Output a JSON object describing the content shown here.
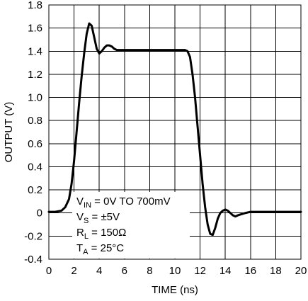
{
  "chart_data": {
    "type": "line",
    "title": "",
    "xlabel": "TIME (ns)",
    "ylabel": "OUTPUT (V)",
    "xlim": [
      0,
      20
    ],
    "ylim": [
      -0.4,
      1.8
    ],
    "xticks": [
      0,
      2,
      4,
      6,
      8,
      10,
      12,
      14,
      16,
      18,
      20
    ],
    "xtick_labels": [
      "0",
      "2",
      "4",
      "6",
      "8",
      "10",
      "12",
      "14",
      "16",
      "18",
      "20"
    ],
    "yticks": [
      -0.4,
      -0.2,
      0,
      0.2,
      0.4,
      0.6,
      0.8,
      1.0,
      1.2,
      1.4,
      1.6,
      1.8
    ],
    "ytick_labels": [
      "-0.4",
      "-0.2",
      "0",
      "0.2",
      "0.4",
      "0.6",
      "0.8",
      "1.0",
      "1.2",
      "1.4",
      "1.6",
      "1.8"
    ],
    "grid": true,
    "series": [
      {
        "x": [
          0,
          0.5,
          1.0,
          1.3,
          1.6,
          1.8,
          2.0,
          2.2,
          2.4,
          2.6,
          2.8,
          3.0,
          3.2,
          3.4,
          3.6,
          3.8,
          4.0,
          4.2,
          4.4,
          4.6,
          4.8,
          5.0,
          5.2,
          5.4,
          5.6,
          5.8,
          6.0,
          7.0,
          8.0,
          9.0,
          10.0,
          10.5,
          10.8,
          11.0,
          11.2,
          11.4,
          11.6,
          11.8,
          12.0,
          12.2,
          12.4,
          12.6,
          12.8,
          13.0,
          13.2,
          13.4,
          13.6,
          13.8,
          14.0,
          14.2,
          14.4,
          14.6,
          14.8,
          15.0,
          15.3,
          15.6,
          16.0,
          17.0,
          18.0,
          19.0,
          20.0
        ],
        "y": [
          0.01,
          0.01,
          0.02,
          0.05,
          0.12,
          0.25,
          0.45,
          0.7,
          0.95,
          1.18,
          1.38,
          1.55,
          1.64,
          1.62,
          1.52,
          1.42,
          1.38,
          1.4,
          1.43,
          1.45,
          1.45,
          1.44,
          1.42,
          1.41,
          1.41,
          1.41,
          1.41,
          1.41,
          1.41,
          1.41,
          1.41,
          1.41,
          1.41,
          1.4,
          1.35,
          1.2,
          1.0,
          0.75,
          0.5,
          0.25,
          0.05,
          -0.1,
          -0.18,
          -0.19,
          -0.13,
          -0.05,
          0.0,
          0.02,
          0.03,
          0.02,
          0.0,
          -0.02,
          -0.03,
          -0.02,
          -0.01,
          0.0,
          0.01,
          0.01,
          0.01,
          0.01,
          0.01
        ]
      }
    ],
    "annotations": [
      {
        "main": "V",
        "sub": "IN",
        "rest": " = 0V TO 700mV"
      },
      {
        "main": "V",
        "sub": "S",
        "rest": " = ±5V"
      },
      {
        "main": "R",
        "sub": "L",
        "rest": " = 150Ω"
      },
      {
        "main": "T",
        "sub": "A",
        "rest": " = 25°C"
      }
    ],
    "line_color": "#000000",
    "grid_color": "#000000"
  }
}
